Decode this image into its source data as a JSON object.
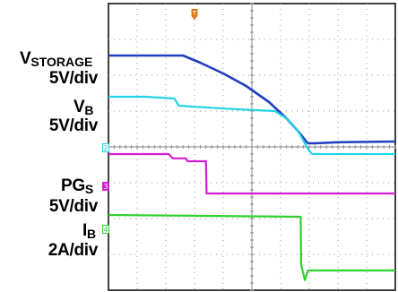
{
  "chart_data": {
    "type": "line",
    "title": "",
    "xlabel": "",
    "ylabel": "",
    "grid": true,
    "x_divisions": 10,
    "y_divisions": 8,
    "x_range": [
      0,
      10
    ],
    "y_range": [
      0,
      8
    ],
    "series": [
      {
        "name": "VSTORAGE",
        "color": "#1f3fbf",
        "x": [
          0,
          1.3,
          2.6,
          3.2,
          4.0,
          4.8,
          5.6,
          6.2,
          6.6,
          6.95,
          7.2,
          8.0,
          10.0
        ],
        "y": [
          6.55,
          6.55,
          6.55,
          6.35,
          6.05,
          5.7,
          5.25,
          4.8,
          4.45,
          4.1,
          4.1,
          4.13,
          4.15
        ]
      },
      {
        "name": "VB",
        "color": "#22d3e6",
        "x": [
          0,
          1.3,
          2.3,
          2.45,
          3.0,
          4.5,
          5.8,
          6.2,
          6.6,
          6.95,
          7.1,
          10.0
        ],
        "y": [
          5.4,
          5.4,
          5.35,
          5.15,
          5.12,
          5.05,
          5.0,
          4.8,
          4.45,
          3.95,
          3.8,
          3.8
        ]
      },
      {
        "name": "PGS",
        "color": "#d21fd2",
        "x": [
          0,
          2.1,
          2.25,
          2.7,
          2.75,
          3.4,
          3.42,
          10.0
        ],
        "y": [
          3.8,
          3.8,
          3.68,
          3.68,
          3.6,
          3.6,
          2.7,
          2.7
        ]
      },
      {
        "name": "IB",
        "color": "#2ed12e",
        "x": [
          0,
          6.7,
          6.72,
          6.85,
          6.95,
          10.0
        ],
        "y": [
          2.1,
          2.05,
          0.7,
          0.28,
          0.55,
          0.55
        ]
      }
    ]
  },
  "labels": {
    "vstorage_main": "V",
    "vstorage_sub": "STORAGE",
    "vstorage_scale": "5V/div",
    "vb_main": "V",
    "vb_sub": "B",
    "vb_scale": "5V/div",
    "pgs_main": "PG",
    "pgs_sub": "S",
    "pgs_scale": "5V/div",
    "ib_main": "I",
    "ib_sub": "B",
    "ib_scale": "2A/div"
  },
  "markers": {
    "ch2": "2",
    "ch3": "3",
    "ch4": "4",
    "trigger": "T"
  },
  "colors": {
    "ch1": "#1f3fbf",
    "ch2": "#22d3e6",
    "ch3": "#d21fd2",
    "ch4": "#2ed12e",
    "trigger": "#e07a18"
  }
}
